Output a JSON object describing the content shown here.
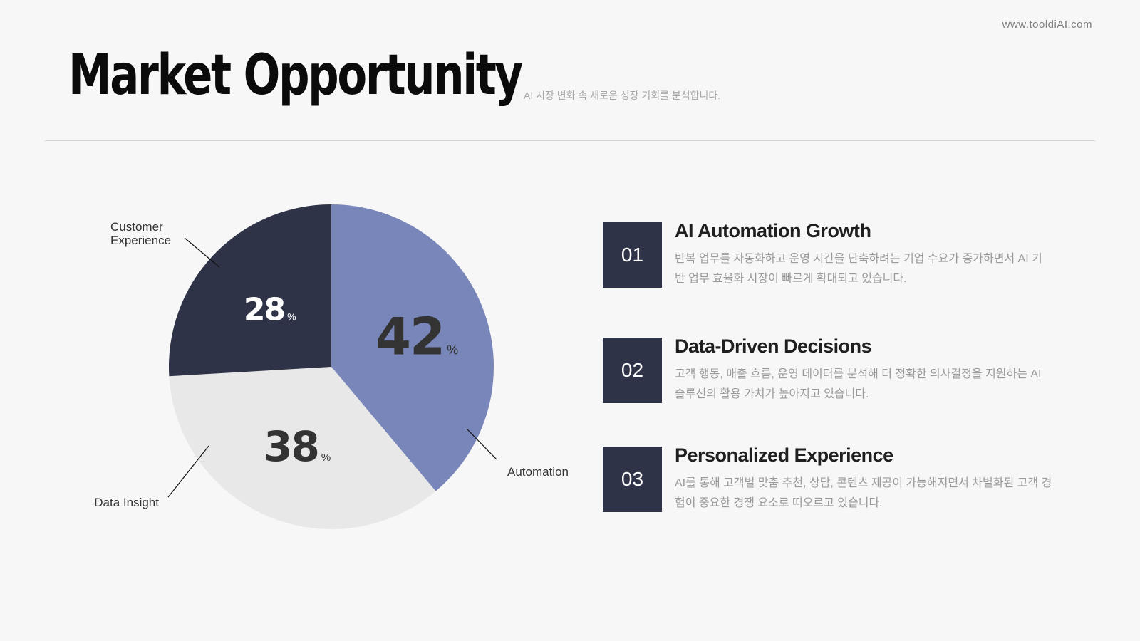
{
  "site_url": "www.tooldiAI.com",
  "title": "Market Opportunity",
  "subtitle": "AI 시장 변화 속 새로운 성장 기회를 분석합니다.",
  "chart_data": {
    "type": "pie",
    "unit": "%",
    "slices": [
      {
        "label": "Automation",
        "value": 42,
        "color": "#7886b9",
        "text_color": "#333333"
      },
      {
        "label": "Data Insight",
        "value": 38,
        "color": "#e8e8e8",
        "text_color": "#333333"
      },
      {
        "label": "Customer Experience",
        "value": 28,
        "color": "#2e3347",
        "text_color": "#ffffff"
      }
    ]
  },
  "items": [
    {
      "number": "01",
      "title": "AI Automation Growth",
      "desc": "반복 업무를 자동화하고 운영 시간을 단축하려는 기업 수요가 증가하면서 AI 기반 업무 효율화 시장이 빠르게 확대되고 있습니다."
    },
    {
      "number": "02",
      "title": "Data-Driven Decisions",
      "desc": "고객 행동, 매출 흐름, 운영 데이터를 분석해 더 정확한 의사결정을 지원하는 AI 솔루션의 활용 가치가 높아지고 있습니다."
    },
    {
      "number": "03",
      "title": "Personalized Experience",
      "desc": "AI를 통해 고객별 맞춤 추천, 상담, 콘텐츠 제공이 가능해지면서 차별화된 고객 경험이 중요한 경쟁 요소로 떠오르고 있습니다."
    }
  ]
}
